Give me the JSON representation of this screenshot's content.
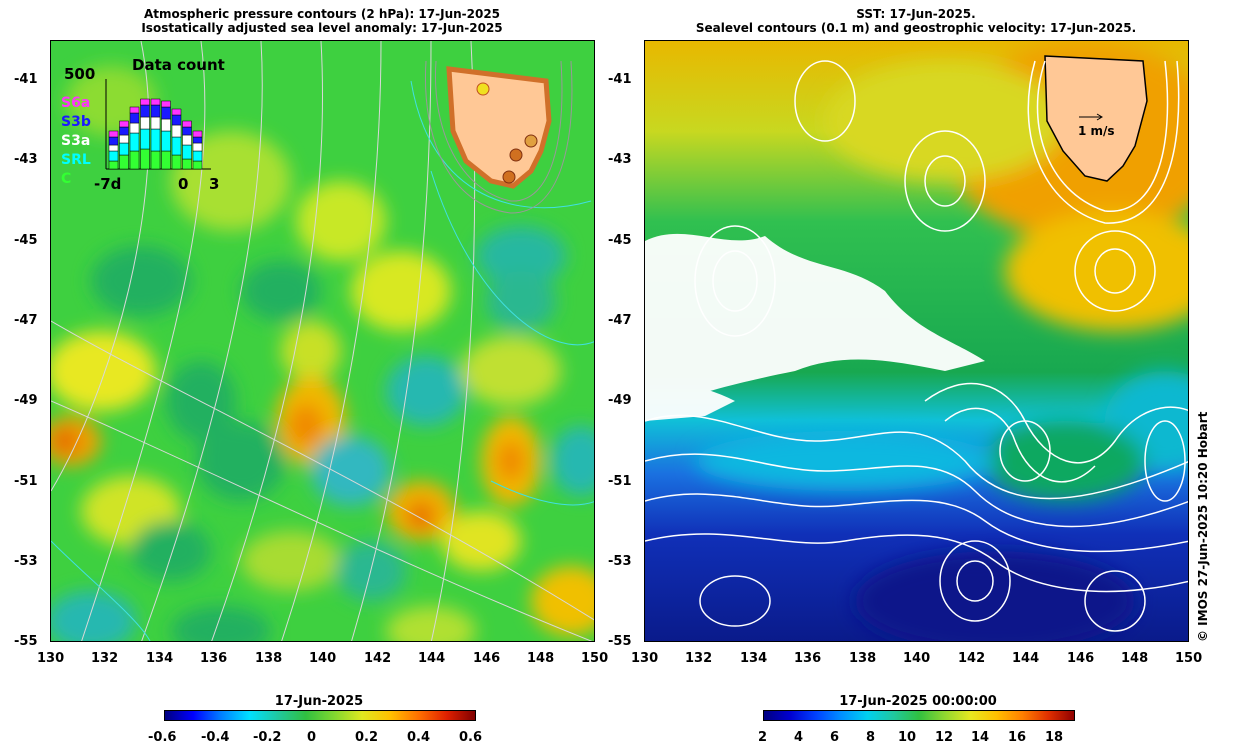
{
  "left_panel": {
    "title_line1": "Atmospheric pressure contours (2 hPa): 17-Jun-2025",
    "title_line2": "Isostatically adjusted sea level anomaly: 17-Jun-2025",
    "inset": {
      "title": "Data count",
      "ymax": "500",
      "legend": [
        "S6a",
        "S3b",
        "S3a",
        "SRL",
        "C"
      ],
      "legend_colors": [
        "#ff33ff",
        "#1a1aff",
        "#ffffff",
        "#00ffff",
        "#33ff33"
      ],
      "xlabel_left": "-7d",
      "xlabel_mid": "0",
      "xlabel_right": "3"
    },
    "colorbar": {
      "title": "17-Jun-2025",
      "ticks": [
        "-0.6",
        "-0.4",
        "-0.2",
        "0",
        "0.2",
        "0.4",
        "0.6"
      ]
    }
  },
  "right_panel": {
    "title_line1": "SST: 17-Jun-2025.",
    "title_line2": "Sealevel contours (0.1 m) and geostrophic velocity: 17-Jun-2025.",
    "velocity_scale_label": "1 m/s",
    "colorbar": {
      "title": "17-Jun-2025 00:00:00",
      "ticks": [
        "2",
        "4",
        "6",
        "8",
        "10",
        "12",
        "14",
        "16",
        "18"
      ]
    }
  },
  "axes": {
    "y_ticks": [
      "-41",
      "-43",
      "-45",
      "-47",
      "-49",
      "-51",
      "-53",
      "-55"
    ],
    "x_ticks": [
      "130",
      "132",
      "134",
      "136",
      "138",
      "140",
      "142",
      "144",
      "146",
      "148",
      "150"
    ]
  },
  "credit": "© IMOS 27-Jun-2025 10:20 Hobart",
  "colors": {
    "land": "#ffc896",
    "sla_background": "#3ed040",
    "sst_cold": "#0a1a9a",
    "sst_warm": "#f0a000"
  }
}
